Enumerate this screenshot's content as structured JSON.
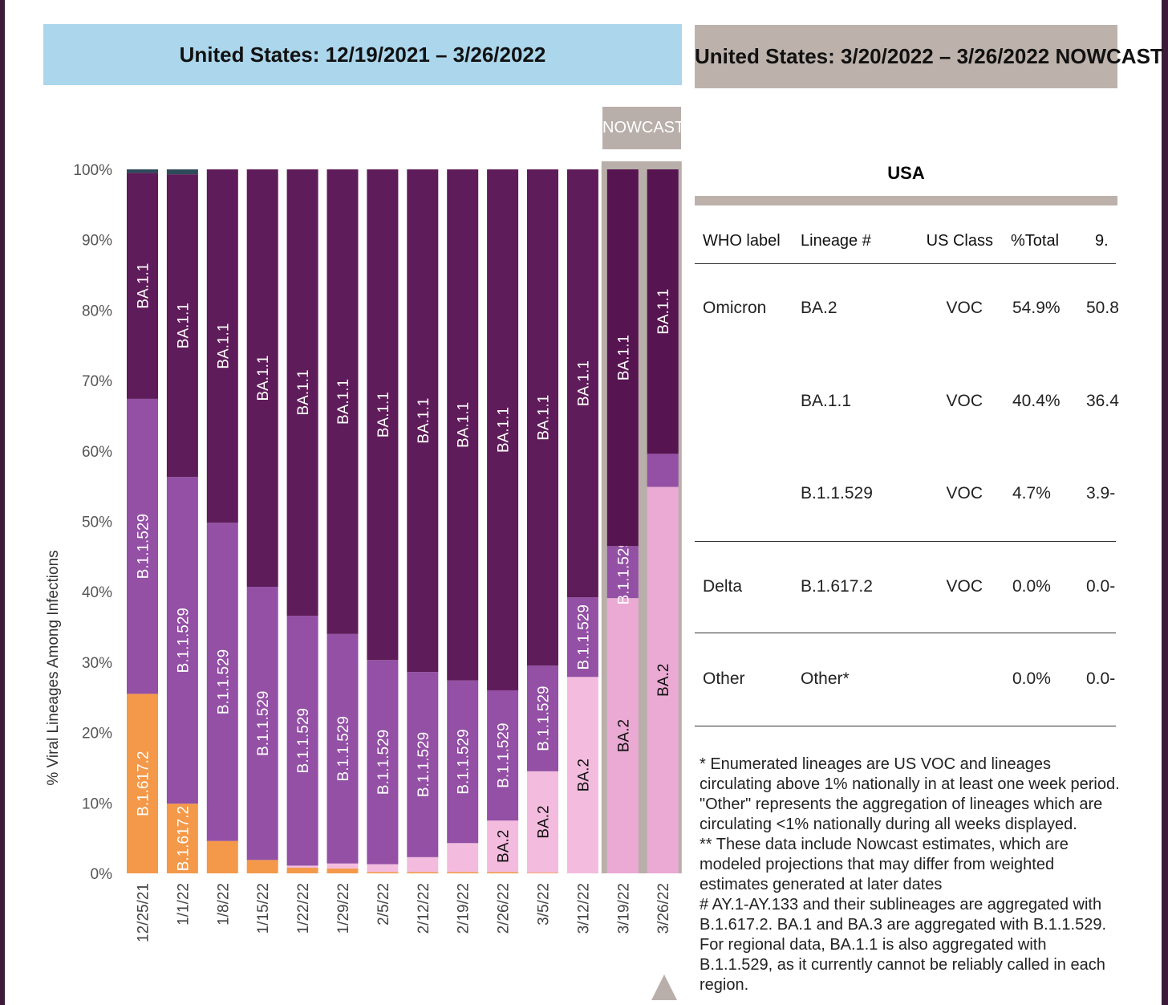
{
  "left_header": {
    "title": "United States: 12/19/2021 – 3/26/2022"
  },
  "right_header": {
    "title": "United States: 3/20/2022 – 3/26/2022 NOWCAST"
  },
  "nowcast_label": "NOWCAST",
  "colors": {
    "Delta": "#f4994a",
    "BA.2": "#f3bcde",
    "B.1.1.529": "#9350a5",
    "BA.1.1": "#5f1c5a",
    "Other": "#2d4a5a",
    "nowcast_bg": "#b9afaa"
  },
  "chart_data": {
    "type": "bar",
    "stacked": true,
    "ylabel": "% Viral Lineages Among Infections",
    "xlabel": "",
    "ylim": [
      0,
      100
    ],
    "yticks": [
      "0%",
      "10%",
      "20%",
      "30%",
      "40%",
      "50%",
      "60%",
      "70%",
      "80%",
      "90%",
      "100%"
    ],
    "categories": [
      "12/25/21",
      "1/1/22",
      "1/8/22",
      "1/15/22",
      "1/22/22",
      "1/29/22",
      "2/5/22",
      "2/12/22",
      "2/19/22",
      "2/26/22",
      "3/5/22",
      "3/12/22",
      "3/19/22",
      "3/26/22"
    ],
    "nowcast_weeks": [
      "3/19/22",
      "3/26/22"
    ],
    "series": [
      {
        "name": "B.1.617.2",
        "values": [
          25.5,
          9.9,
          4.6,
          1.9,
          0.8,
          0.7,
          0.2,
          0.2,
          0.2,
          0.2,
          0.1,
          0,
          0,
          0
        ]
      },
      {
        "name": "BA.2",
        "values": [
          0,
          0,
          0,
          0,
          0.3,
          0.7,
          1.1,
          2.1,
          4.1,
          7.3,
          14.4,
          27.9,
          39.1,
          54.9
        ]
      },
      {
        "name": "B.1.1.529",
        "values": [
          41.9,
          46.4,
          45.2,
          38.8,
          35.5,
          32.6,
          29.0,
          26.3,
          23.1,
          18.5,
          15.0,
          11.3,
          7.4,
          4.7
        ]
      },
      {
        "name": "BA.1.1",
        "values": [
          32.1,
          43.0,
          50.2,
          59.3,
          63.4,
          66.0,
          69.7,
          71.4,
          72.6,
          74.0,
          70.5,
          60.8,
          53.5,
          40.4
        ]
      },
      {
        "name": "Other",
        "values": [
          0.5,
          0.7,
          0,
          0,
          0,
          0,
          0,
          0,
          0,
          0,
          0,
          0,
          0,
          0
        ]
      }
    ]
  },
  "table": {
    "region": "USA",
    "headers": [
      "WHO label",
      "Lineage #",
      "US Class",
      "%Total",
      "9."
    ],
    "rows": [
      [
        "Omicron",
        "BA.2",
        "VOC",
        "54.9%",
        "50.8"
      ],
      [
        "",
        "BA.1.1",
        "VOC",
        "40.4%",
        "36.4"
      ],
      [
        "",
        "B.1.1.529",
        "VOC",
        "4.7%",
        "3.9-"
      ],
      [
        "Delta",
        "B.1.617.2",
        "VOC",
        "0.0%",
        "0.0-"
      ],
      [
        "Other",
        "Other*",
        "",
        "0.0%",
        "0.0-"
      ]
    ]
  },
  "notes": [
    "*      Enumerated lineages are US VOC and lineages circulating above 1% nationally in at least one week period. \"Other\" represents the aggregation of lineages which are circulating <1% nationally during all weeks displayed.",
    "**      These data include Nowcast estimates, which are modeled projections that may differ from weighted estimates generated at later dates",
    "#      AY.1-AY.133 and their sublineages are aggregated with B.1.617.2. BA.1 and BA.3 are aggregated with B.1.1.529. For regional data, BA.1.1 is also aggregated with B.1.1.529, as it currently cannot be reliably called in each region."
  ]
}
